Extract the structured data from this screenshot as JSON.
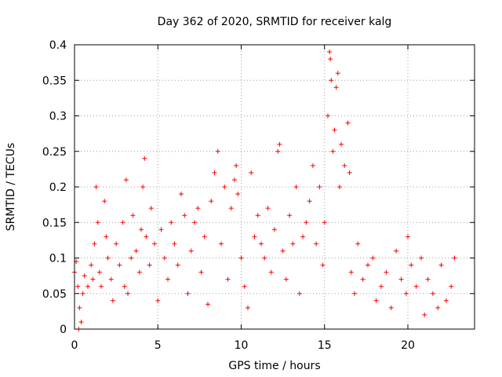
{
  "chart_data": {
    "type": "scatter",
    "title": "Day 362 of 2020, SRMTID for receiver kalg",
    "xlabel": "GPS time / hours",
    "ylabel": "SRMTID / TECUs",
    "xlim": [
      0,
      24
    ],
    "ylim": [
      0,
      0.4
    ],
    "x_ticks": [
      0,
      5,
      10,
      15,
      20
    ],
    "x_tick_labels": [
      "0",
      "5",
      "10",
      "15",
      "20"
    ],
    "y_ticks": [
      0,
      0.05,
      0.1,
      0.15,
      0.2,
      0.25,
      0.3,
      0.35,
      0.4
    ],
    "y_tick_labels": [
      "0",
      "0.05",
      "0.1",
      "0.15",
      "0.2",
      "0.25",
      "0.3",
      "0.35",
      "0.4"
    ],
    "grid": true,
    "marker": "plus",
    "color": "#ff0000",
    "series": [
      {
        "name": "kalg",
        "points": [
          [
            0.0,
            0.08
          ],
          [
            0.1,
            0.095
          ],
          [
            0.2,
            0.06
          ],
          [
            0.25,
            0.0
          ],
          [
            0.3,
            0.03
          ],
          [
            0.4,
            0.01
          ],
          [
            0.5,
            0.05
          ],
          [
            0.6,
            0.075
          ],
          [
            0.8,
            0.06
          ],
          [
            1.0,
            0.09
          ],
          [
            1.1,
            0.07
          ],
          [
            1.2,
            0.12
          ],
          [
            1.3,
            0.2
          ],
          [
            1.4,
            0.15
          ],
          [
            1.5,
            0.08
          ],
          [
            1.6,
            0.06
          ],
          [
            1.8,
            0.18
          ],
          [
            1.9,
            0.13
          ],
          [
            2.0,
            0.1
          ],
          [
            2.2,
            0.07
          ],
          [
            2.3,
            0.04
          ],
          [
            2.5,
            0.12
          ],
          [
            2.7,
            0.09
          ],
          [
            2.9,
            0.15
          ],
          [
            3.0,
            0.06
          ],
          [
            3.1,
            0.21
          ],
          [
            3.2,
            0.05
          ],
          [
            3.4,
            0.1
          ],
          [
            3.5,
            0.16
          ],
          [
            3.7,
            0.11
          ],
          [
            3.9,
            0.08
          ],
          [
            4.0,
            0.14
          ],
          [
            4.1,
            0.2
          ],
          [
            4.2,
            0.24
          ],
          [
            4.3,
            0.13
          ],
          [
            4.5,
            0.09
          ],
          [
            4.6,
            0.17
          ],
          [
            4.8,
            0.12
          ],
          [
            5.0,
            0.04
          ],
          [
            5.2,
            0.14
          ],
          [
            5.4,
            0.1
          ],
          [
            5.6,
            0.07
          ],
          [
            5.8,
            0.15
          ],
          [
            6.0,
            0.12
          ],
          [
            6.2,
            0.09
          ],
          [
            6.4,
            0.19
          ],
          [
            6.6,
            0.16
          ],
          [
            6.8,
            0.05
          ],
          [
            7.0,
            0.11
          ],
          [
            7.2,
            0.15
          ],
          [
            7.4,
            0.17
          ],
          [
            7.6,
            0.08
          ],
          [
            7.8,
            0.13
          ],
          [
            8.0,
            0.035
          ],
          [
            8.2,
            0.18
          ],
          [
            8.4,
            0.22
          ],
          [
            8.6,
            0.25
          ],
          [
            8.8,
            0.12
          ],
          [
            9.0,
            0.2
          ],
          [
            9.2,
            0.07
          ],
          [
            9.4,
            0.17
          ],
          [
            9.6,
            0.21
          ],
          [
            9.7,
            0.23
          ],
          [
            9.8,
            0.19
          ],
          [
            10.0,
            0.1
          ],
          [
            10.2,
            0.06
          ],
          [
            10.4,
            0.03
          ],
          [
            10.6,
            0.22
          ],
          [
            10.8,
            0.13
          ],
          [
            11.0,
            0.16
          ],
          [
            11.2,
            0.12
          ],
          [
            11.4,
            0.1
          ],
          [
            11.6,
            0.17
          ],
          [
            11.8,
            0.08
          ],
          [
            12.0,
            0.14
          ],
          [
            12.2,
            0.25
          ],
          [
            12.3,
            0.26
          ],
          [
            12.5,
            0.11
          ],
          [
            12.7,
            0.07
          ],
          [
            12.9,
            0.16
          ],
          [
            13.1,
            0.12
          ],
          [
            13.3,
            0.2
          ],
          [
            13.5,
            0.05
          ],
          [
            13.7,
            0.13
          ],
          [
            13.9,
            0.15
          ],
          [
            14.1,
            0.18
          ],
          [
            14.3,
            0.23
          ],
          [
            14.5,
            0.12
          ],
          [
            14.7,
            0.2
          ],
          [
            14.9,
            0.09
          ],
          [
            15.0,
            0.15
          ],
          [
            15.2,
            0.3
          ],
          [
            15.3,
            0.39
          ],
          [
            15.35,
            0.38
          ],
          [
            15.4,
            0.35
          ],
          [
            15.5,
            0.25
          ],
          [
            15.6,
            0.28
          ],
          [
            15.7,
            0.34
          ],
          [
            15.8,
            0.36
          ],
          [
            15.9,
            0.2
          ],
          [
            16.0,
            0.26
          ],
          [
            16.2,
            0.23
          ],
          [
            16.4,
            0.29
          ],
          [
            16.5,
            0.22
          ],
          [
            16.6,
            0.08
          ],
          [
            16.8,
            0.05
          ],
          [
            17.0,
            0.12
          ],
          [
            17.3,
            0.07
          ],
          [
            17.6,
            0.09
          ],
          [
            17.9,
            0.1
          ],
          [
            18.1,
            0.04
          ],
          [
            18.4,
            0.06
          ],
          [
            18.7,
            0.08
          ],
          [
            19.0,
            0.03
          ],
          [
            19.3,
            0.11
          ],
          [
            19.6,
            0.07
          ],
          [
            19.9,
            0.05
          ],
          [
            20.0,
            0.13
          ],
          [
            20.2,
            0.09
          ],
          [
            20.5,
            0.06
          ],
          [
            20.8,
            0.1
          ],
          [
            21.0,
            0.02
          ],
          [
            21.2,
            0.07
          ],
          [
            21.5,
            0.05
          ],
          [
            21.8,
            0.03
          ],
          [
            22.0,
            0.09
          ],
          [
            22.3,
            0.04
          ],
          [
            22.6,
            0.06
          ],
          [
            22.8,
            0.1
          ]
        ]
      }
    ]
  }
}
